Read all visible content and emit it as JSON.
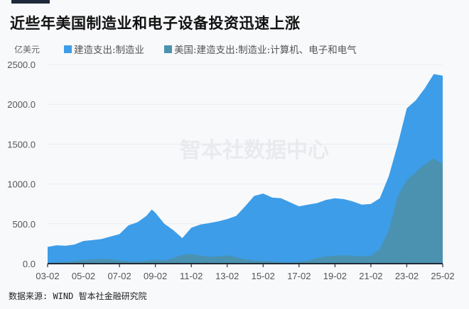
{
  "header": {
    "title": "近些年美国制造业和电子设备投资迅速上涨",
    "unit": "亿美元"
  },
  "legend": [
    {
      "label": "建造支出:制造业",
      "color": "#3d9de8"
    },
    {
      "label": "美国:建造支出:制造业:计算机、电子和电气",
      "color": "#4a92b0"
    }
  ],
  "watermark": "智本社数据中心",
  "footer": {
    "source": "数据来源: WIND 智本社金融研究院"
  },
  "chart_data": {
    "type": "area",
    "title": "近些年美国制造业和电子设备投资迅速上涨",
    "xlabel": "",
    "ylabel": "亿美元",
    "ylim": [
      0,
      2500
    ],
    "yticks": [
      "0.0",
      "500.0",
      "1000.0",
      "1500.0",
      "2000.0",
      "2500.0"
    ],
    "xticks": [
      "03-02",
      "05-02",
      "07-02",
      "09-02",
      "11-02",
      "13-02",
      "15-02",
      "17-02",
      "19-02",
      "21-02",
      "23-02",
      "25-02"
    ],
    "grid": true,
    "legend_position": "top",
    "x": [
      2003.0,
      2003.5,
      2004.0,
      2004.5,
      2005.0,
      2005.5,
      2006.0,
      2006.5,
      2007.0,
      2007.5,
      2008.0,
      2008.5,
      2008.8,
      2009.0,
      2009.5,
      2010.0,
      2010.5,
      2011.0,
      2011.5,
      2012.0,
      2012.5,
      2013.0,
      2013.5,
      2014.0,
      2014.5,
      2015.0,
      2015.5,
      2016.0,
      2016.5,
      2017.0,
      2017.5,
      2018.0,
      2018.5,
      2019.0,
      2019.5,
      2020.0,
      2020.5,
      2021.0,
      2021.5,
      2022.0,
      2022.5,
      2023.0,
      2023.5,
      2024.0,
      2024.5,
      2025.0,
      2025.2
    ],
    "series": [
      {
        "name": "建造支出:制造业",
        "values": [
          210,
          230,
          225,
          240,
          285,
          295,
          310,
          340,
          370,
          480,
          520,
          600,
          680,
          640,
          500,
          420,
          320,
          450,
          490,
          510,
          530,
          560,
          600,
          720,
          850,
          880,
          830,
          820,
          770,
          720,
          740,
          760,
          800,
          820,
          810,
          780,
          740,
          750,
          820,
          1100,
          1500,
          1950,
          2050,
          2200,
          2380,
          2360,
          2350
        ]
      },
      {
        "name": "美国:建造支出:制造业:计算机、电子和电气",
        "values": [
          10,
          15,
          20,
          30,
          45,
          55,
          60,
          55,
          40,
          30,
          25,
          35,
          45,
          50,
          40,
          70,
          110,
          120,
          100,
          85,
          90,
          105,
          80,
          55,
          40,
          35,
          30,
          20,
          20,
          25,
          40,
          70,
          90,
          100,
          105,
          100,
          90,
          100,
          180,
          420,
          850,
          1050,
          1150,
          1250,
          1320,
          1250,
          1240
        ]
      }
    ]
  }
}
